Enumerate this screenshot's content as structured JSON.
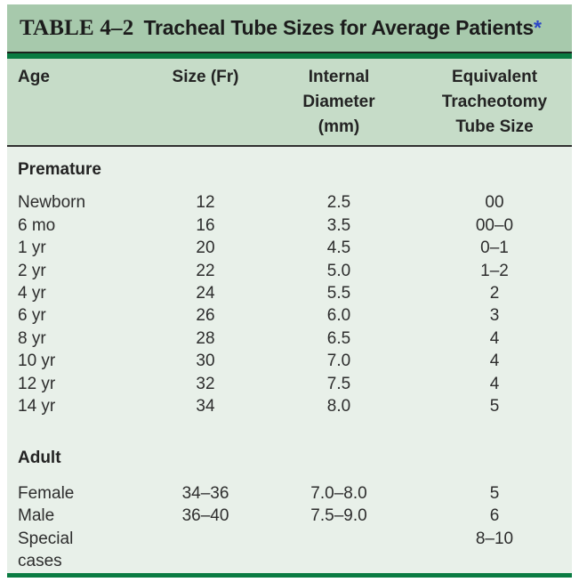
{
  "title": {
    "prefix": "TABLE 4–2",
    "text": "Tracheal Tube Sizes for Average Patients",
    "footnote_marker": "*"
  },
  "columns": [
    {
      "label": "Age"
    },
    {
      "label": "Size (Fr)"
    },
    {
      "label": "Internal\nDiameter\n(mm)"
    },
    {
      "label": "Equivalent\nTracheotomy\nTube Size"
    }
  ],
  "sections": [
    {
      "label": "Premature",
      "rows": [
        [
          "Newborn",
          "12",
          "2.5",
          "00"
        ],
        [
          "6 mo",
          "16",
          "3.5",
          "00–0"
        ],
        [
          "1 yr",
          "20",
          "4.5",
          "0–1"
        ],
        [
          "2 yr",
          "22",
          "5.0",
          "1–2"
        ],
        [
          "4 yr",
          "24",
          "5.5",
          "2"
        ],
        [
          "6 yr",
          "26",
          "6.0",
          "3"
        ],
        [
          "8 yr",
          "28",
          "6.5",
          "4"
        ],
        [
          "10 yr",
          "30",
          "7.0",
          "4"
        ],
        [
          "12 yr",
          "32",
          "7.5",
          "4"
        ],
        [
          "14 yr",
          "34",
          "8.0",
          "5"
        ]
      ]
    },
    {
      "label": "Adult",
      "rows": [
        [
          "Female",
          "34–36",
          "7.0–8.0",
          "5"
        ],
        [
          "Male",
          "36–40",
          "7.5–9.0",
          "6"
        ],
        [
          "Special\ncases",
          "",
          "",
          "8–10"
        ]
      ]
    }
  ],
  "colors": {
    "title_bar_bg": "#a7c9ac",
    "header_bg": "#c6dcc8",
    "body_bg": "#e8f0e9",
    "rule_green": "#0a7b42",
    "text": "#2d2d2d",
    "title_text": "#1c1c1c",
    "asterisk_blue": "#2c46c8"
  }
}
